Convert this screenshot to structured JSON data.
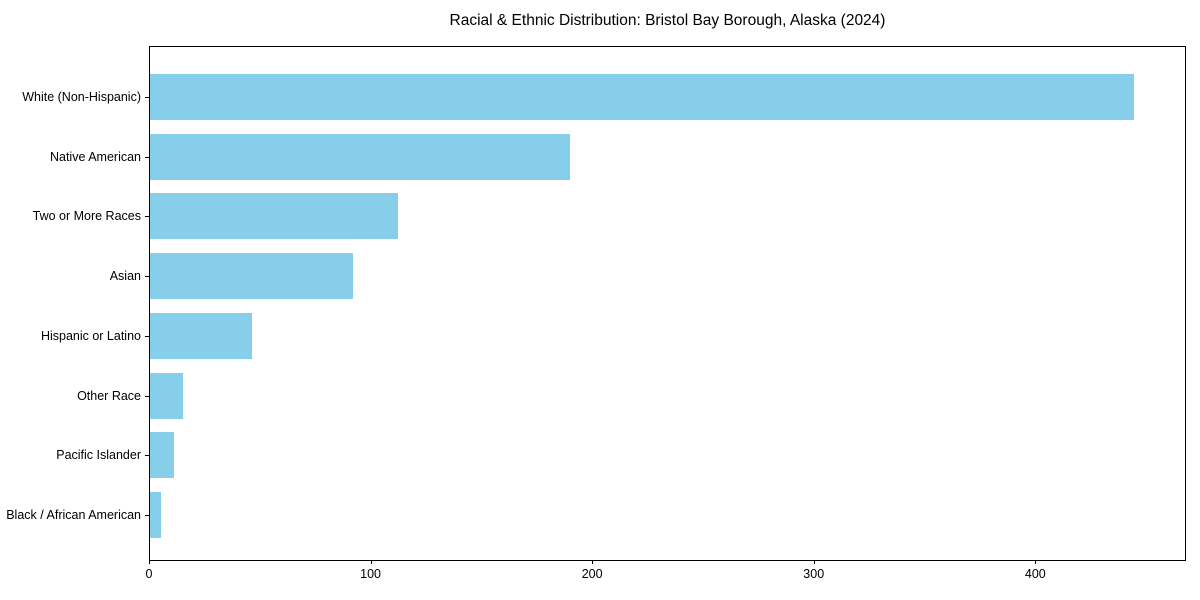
{
  "chart_data": {
    "type": "bar",
    "orientation": "horizontal",
    "title": "Racial & Ethnic Distribution: Bristol Bay Borough, Alaska (2024)",
    "categories": [
      "White (Non-Hispanic)",
      "Native American",
      "Two or More Races",
      "Asian",
      "Hispanic or Latino",
      "Other Race",
      "Pacific Islander",
      "Black / African American"
    ],
    "values": [
      445,
      190,
      112,
      92,
      46,
      15,
      11,
      5
    ],
    "x_ticks": [
      0,
      100,
      200,
      300,
      400
    ],
    "xlim": [
      0,
      468
    ],
    "xlabel": "",
    "ylabel": "",
    "grid": false,
    "legend": null,
    "colors": {
      "bar": "#87CEEB",
      "axis": "#000000",
      "text": "#000000",
      "background": "#ffffff"
    }
  }
}
